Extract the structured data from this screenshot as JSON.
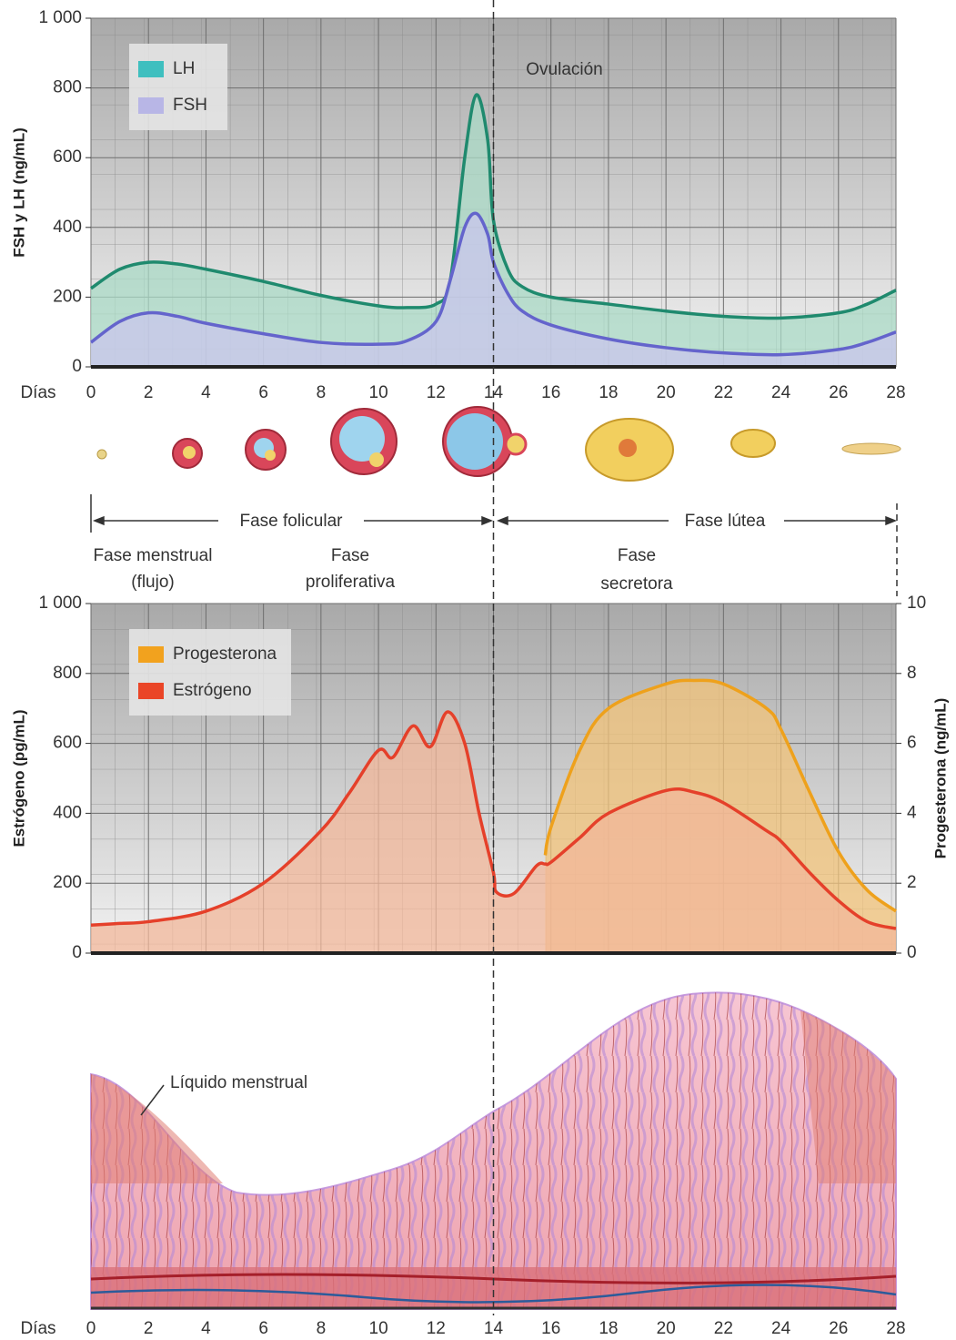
{
  "chart_data": [
    {
      "type": "line",
      "area": true,
      "ylabel": "FSH y LH (ng/mL)",
      "xlabel": "Días",
      "annotation": "Ovulación",
      "x": [
        0,
        1,
        2,
        3,
        4,
        6,
        8,
        10,
        11,
        12,
        12.5,
        13,
        13.4,
        13.8,
        14,
        14.5,
        15,
        16,
        18,
        20,
        22,
        24,
        26,
        27,
        28
      ],
      "xlim": [
        0,
        28
      ],
      "xticks": [
        0,
        2,
        4,
        6,
        8,
        10,
        12,
        14,
        16,
        18,
        20,
        22,
        24,
        26,
        28
      ],
      "ylim": [
        0,
        1000
      ],
      "yticks": [
        0,
        200,
        400,
        600,
        800,
        {
          "value": 1000,
          "label": "1 000"
        }
      ],
      "grid": true,
      "legend": "upper left",
      "series": [
        {
          "name": "LH",
          "color": "#1f8a6e",
          "fill": "#a9d9c6",
          "swatch": "#3fbfbf",
          "values": [
            225,
            280,
            300,
            295,
            280,
            245,
            205,
            175,
            170,
            180,
            250,
            600,
            780,
            650,
            420,
            280,
            230,
            200,
            180,
            160,
            145,
            140,
            155,
            180,
            220
          ]
        },
        {
          "name": "FSH",
          "color": "#6464cc",
          "fill": "#c9c6ec",
          "swatch": "#b8b6e6",
          "values": [
            70,
            130,
            155,
            145,
            125,
            95,
            70,
            65,
            75,
            130,
            250,
            400,
            440,
            380,
            300,
            210,
            160,
            120,
            80,
            55,
            40,
            35,
            50,
            70,
            100
          ]
        }
      ]
    },
    {
      "type": "line",
      "area": true,
      "ylabel": "Estrógeno (pg/mL)",
      "y2label": "Progesterona (ng/mL)",
      "x": [
        0,
        1,
        2,
        4,
        6,
        8,
        9,
        10,
        10.5,
        11.2,
        11.8,
        12.4,
        13,
        13.5,
        14,
        14.1,
        14.7,
        15.5,
        15.8,
        16,
        17,
        18,
        20,
        21,
        22,
        23.5,
        24,
        25,
        26,
        27,
        28
      ],
      "xlim": [
        0,
        28
      ],
      "xticks": [
        0,
        2,
        4,
        6,
        8,
        10,
        12,
        14,
        16,
        18,
        20,
        22,
        24,
        26,
        28
      ],
      "ylim": [
        0,
        1000
      ],
      "yticks": [
        0,
        200,
        400,
        600,
        800,
        {
          "value": 1000,
          "label": "1 000"
        }
      ],
      "y2lim": [
        0,
        10
      ],
      "y2ticks": [
        0,
        2,
        4,
        6,
        8,
        10
      ],
      "grid": true,
      "legend": "upper left",
      "series": [
        {
          "name": "Progesterona",
          "color": "#eea11c",
          "fill": "#f2c37a",
          "swatch": "#f2a21e",
          "axis": "y2",
          "values": [
            null,
            null,
            null,
            null,
            null,
            null,
            null,
            null,
            null,
            null,
            null,
            null,
            null,
            null,
            null,
            null,
            null,
            null,
            2.8,
            3.6,
            5.8,
            7.0,
            7.7,
            7.8,
            7.7,
            7.0,
            6.4,
            4.6,
            2.9,
            1.8,
            1.2
          ]
        },
        {
          "name": "Estrógeno",
          "color": "#e5402a",
          "fill": "#f2b79a",
          "swatch": "#ea4527",
          "values": [
            80,
            85,
            90,
            120,
            200,
            350,
            460,
            580,
            560,
            650,
            590,
            690,
            600,
            400,
            230,
            175,
            170,
            250,
            255,
            260,
            330,
            400,
            465,
            460,
            430,
            350,
            320,
            230,
            150,
            90,
            70
          ]
        }
      ]
    }
  ],
  "phases": {
    "follicular": "Fase folicular",
    "luteal": "Fase lútea",
    "menstrual": [
      "Fase menstrual",
      "(flujo)"
    ],
    "proliferative": [
      "Fase",
      "proliferativa"
    ],
    "secretory": [
      "Fase",
      "secretora"
    ]
  },
  "endometrium": {
    "label": "Líquido menstrual"
  }
}
